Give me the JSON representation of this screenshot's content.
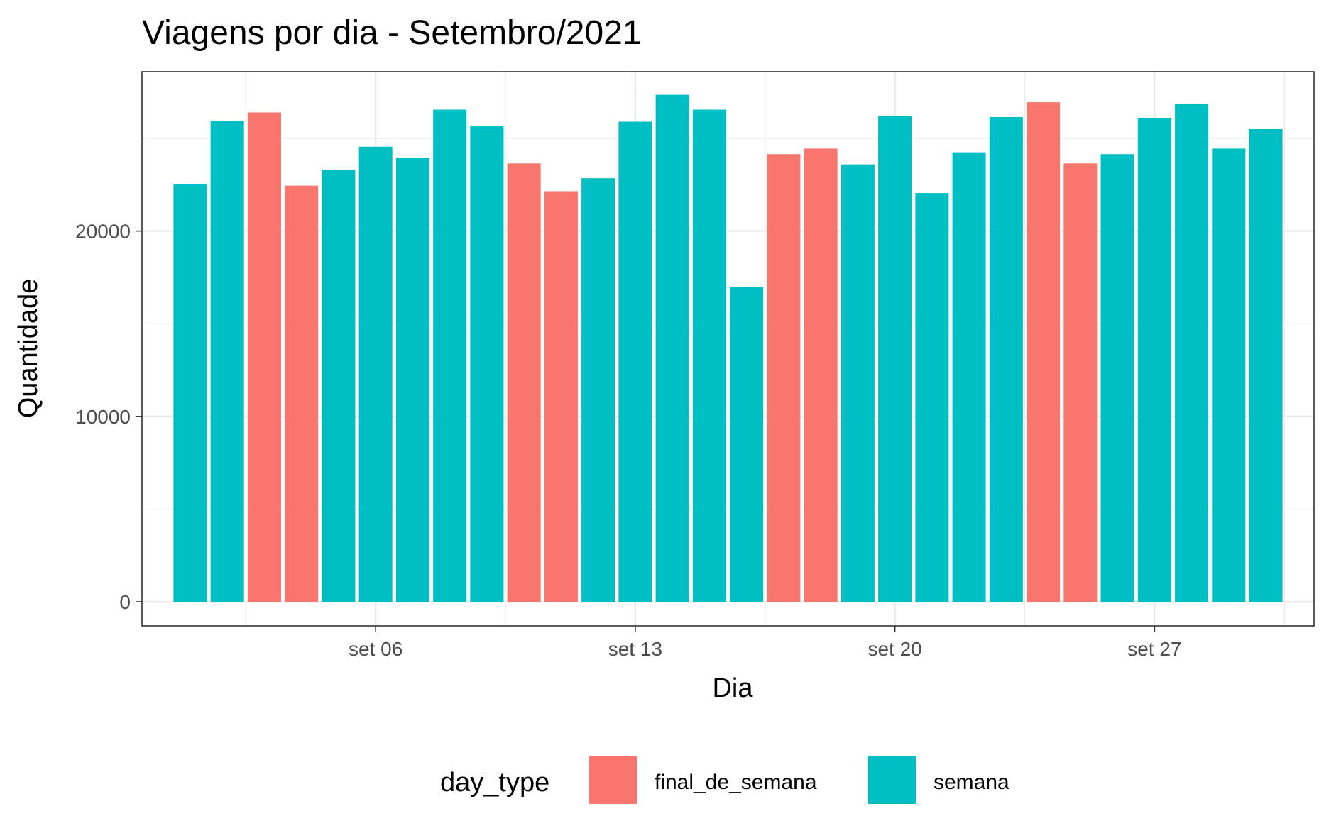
{
  "chart_data": {
    "type": "bar",
    "title": "Viagens por dia - Setembro/2021",
    "xlabel": "Dia",
    "ylabel": "Quantidade",
    "x_tick_labels": [
      "set 06",
      "set 13",
      "set 20",
      "set 27"
    ],
    "x_tick_days": [
      6,
      13,
      20,
      27
    ],
    "y_tick_labels": [
      "0",
      "10000",
      "20000"
    ],
    "y_ticks": [
      0,
      10000,
      20000
    ],
    "ylim": [
      -1300,
      28600
    ],
    "xlim_days": [
      -0.3,
      31.3
    ],
    "grid": true,
    "legend": {
      "position": "bottom",
      "title": "day_type",
      "items": [
        {
          "key": "final_de_semana",
          "label": "final_de_semana",
          "color": "#F8766D"
        },
        {
          "key": "semana",
          "label": "semana",
          "color": "#00BFC4"
        }
      ]
    },
    "days": [
      1,
      2,
      3,
      4,
      5,
      6,
      7,
      8,
      9,
      10,
      11,
      12,
      13,
      14,
      15,
      16,
      17,
      18,
      19,
      20,
      21,
      22,
      23,
      24,
      25,
      26,
      27,
      28,
      29,
      30
    ],
    "values": [
      22550,
      25950,
      26400,
      22450,
      23300,
      24550,
      23950,
      26550,
      25650,
      23650,
      22150,
      22850,
      25900,
      27350,
      26550,
      17000,
      24150,
      24450,
      23600,
      26200,
      22050,
      24250,
      26150,
      26950,
      23650,
      24150,
      26100,
      26850,
      24450,
      25500
    ],
    "day_type": [
      "semana",
      "semana",
      "final_de_semana",
      "final_de_semana",
      "semana",
      "semana",
      "semana",
      "semana",
      "semana",
      "final_de_semana",
      "final_de_semana",
      "semana",
      "semana",
      "semana",
      "semana",
      "semana",
      "final_de_semana",
      "final_de_semana",
      "semana",
      "semana",
      "semana",
      "semana",
      "semana",
      "final_de_semana",
      "final_de_semana",
      "semana",
      "semana",
      "semana",
      "semana",
      "semana"
    ]
  }
}
